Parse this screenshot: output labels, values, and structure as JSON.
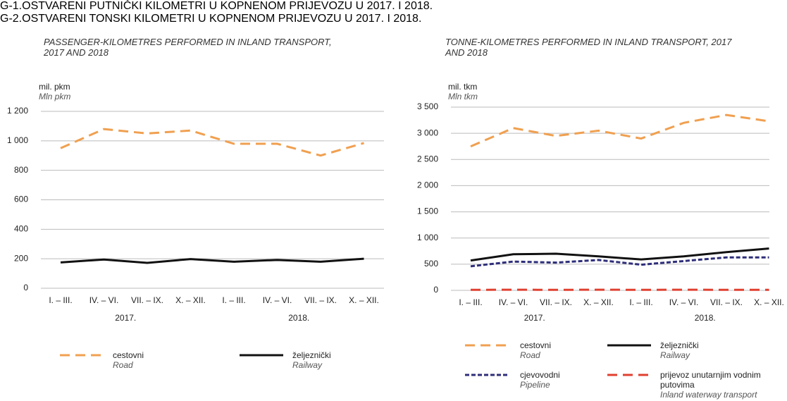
{
  "chart_data": [
    {
      "type": "line",
      "number": "G-1.",
      "title": "OSTVARENI PUTNIČKI KILOMETRI U KOPNENOM PRIJEVOZU U 2017. I 2018.",
      "subtitle": "PASSENGER-KILOMETRES PERFORMED IN INLAND TRANSPORT, 2017 AND 2018",
      "y_label": "mil. pkm",
      "y_label_en": "Mln pkm",
      "categories": [
        "I. – III.",
        "IV. – VI.",
        "VII. – IX.",
        "X. – XII.",
        "I. – III.",
        "IV. – VI.",
        "VII. – IX.",
        "X. – XII."
      ],
      "category_groups": [
        "2017.",
        "2018."
      ],
      "ylim": [
        0,
        1200
      ],
      "yticks": [
        0,
        200,
        400,
        600,
        800,
        {
          "value": 1000,
          "label": "1 000"
        },
        {
          "value": 1200,
          "label": "1 200"
        }
      ],
      "grid": true,
      "series": [
        {
          "name": "cestovni",
          "name_en": "Road",
          "color": "#f0a050",
          "style": "dashed",
          "values": [
            950,
            1080,
            1050,
            1070,
            980,
            980,
            900,
            985
          ]
        },
        {
          "name": "željeznički",
          "name_en": "Railway",
          "color": "#111111",
          "style": "solid",
          "values": [
            175,
            195,
            172,
            198,
            180,
            192,
            180,
            200
          ]
        }
      ]
    },
    {
      "type": "line",
      "number": "G-2.",
      "title": "OSTVARENI TONSKI KILOMETRI U KOPNENOM PRIJEVOZU U 2017. I 2018.",
      "subtitle": "TONNE-KILOMETRES PERFORMED IN INLAND TRANSPORT, 2017 AND 2018",
      "y_label": "mil. tkm",
      "y_label_en": "Mln tkm",
      "categories": [
        "I. – III.",
        "IV. – VI.",
        "VII. – IX.",
        "X. – XII.",
        "I. – III.",
        "IV. – VI.",
        "VII. – IX.",
        "X. – XII."
      ],
      "category_groups": [
        "2017.",
        "2018."
      ],
      "ylim": [
        0,
        3500
      ],
      "yticks": [
        0,
        500,
        {
          "value": 1000,
          "label": "1 000"
        },
        {
          "value": 1500,
          "label": "1 500"
        },
        {
          "value": 2000,
          "label": "2 000"
        },
        {
          "value": 2500,
          "label": "2 500"
        },
        {
          "value": 3000,
          "label": "3 000"
        },
        {
          "value": 3500,
          "label": "3 500"
        }
      ],
      "grid": true,
      "series": [
        {
          "name": "cestovni",
          "name_en": "Road",
          "color": "#f0a050",
          "style": "dashed",
          "values": [
            2750,
            3100,
            2950,
            3050,
            2900,
            3200,
            3350,
            3230
          ]
        },
        {
          "name": "željeznički",
          "name_en": "Railway",
          "color": "#111111",
          "style": "solid",
          "values": [
            570,
            690,
            700,
            650,
            590,
            650,
            730,
            800
          ]
        },
        {
          "name": "cjevovodni",
          "name_en": "Pipeline",
          "color": "#2e2e7a",
          "style": "dotted",
          "values": [
            460,
            550,
            530,
            580,
            490,
            560,
            630,
            630
          ]
        },
        {
          "name": "prijevoz unutarnjim vodnim putovima",
          "name_en": "Inland waterway transport",
          "color": "#e04030",
          "style": "dashed",
          "values": [
            10,
            12,
            10,
            12,
            10,
            12,
            10,
            10
          ]
        }
      ]
    }
  ]
}
